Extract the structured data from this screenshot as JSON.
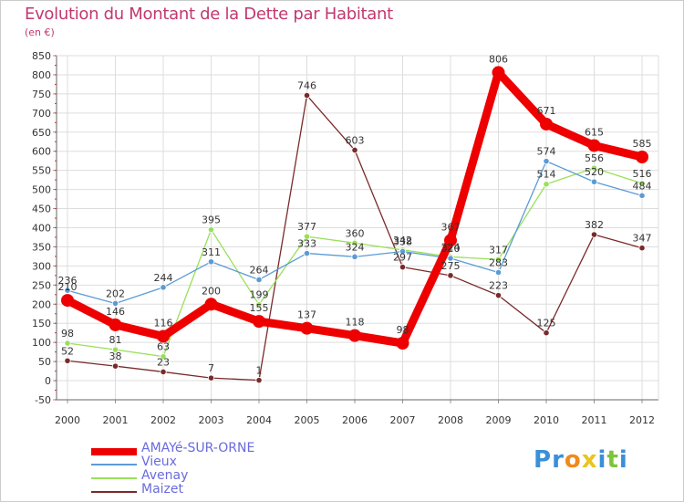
{
  "title": "Evolution du Montant de la Dette par Habitant",
  "unit": "(en €)",
  "logo": {
    "text": "Proxiti",
    "letters": [
      "P",
      "r",
      "o",
      "x",
      "i",
      "t",
      "i"
    ],
    "colors": [
      "#3a8fd8",
      "#3a8fd8",
      "#f08a1c",
      "#e8c51f",
      "#3a8fd8",
      "#7dc43a",
      "#3a8fd8"
    ]
  },
  "chart_data": {
    "type": "line",
    "title": "Evolution du Montant de la Dette par Habitant",
    "ylabel": "(en €)",
    "xlabel": "",
    "x": [
      "2000",
      "2001",
      "2002",
      "2003",
      "2004",
      "2005",
      "2006",
      "2007",
      "2008",
      "2009",
      "2010",
      "2011",
      "2012"
    ],
    "ylim": [
      -50,
      850
    ],
    "yticks": [
      "-50",
      "0",
      "50",
      "100",
      "150",
      "200",
      "250",
      "300",
      "350",
      "400",
      "450",
      "500",
      "550",
      "600",
      "650",
      "700",
      "750",
      "800",
      "850"
    ],
    "grid": true,
    "legend_position": "bottom-left",
    "series": [
      {
        "name": "AMAYé-SUR-ORNE",
        "color": "#ee0000",
        "values": [
          210,
          146,
          116,
          200,
          155,
          137,
          118,
          98,
          367,
          806,
          671,
          615,
          585
        ],
        "labels": [
          "210",
          "146",
          "116",
          "200",
          "155",
          "137",
          "118",
          "98",
          "367",
          "806",
          "671",
          "615",
          "585"
        ]
      },
      {
        "name": "Vieux",
        "color": "#5b9bd5",
        "values": [
          236,
          202,
          244,
          311,
          264,
          333,
          324,
          338,
          320,
          283,
          574,
          520,
          484
        ],
        "labels": [
          "236",
          "202",
          "244",
          "311",
          "264",
          "333",
          "324",
          "338",
          "320",
          "283",
          "574",
          "520",
          "484"
        ]
      },
      {
        "name": "Avenay",
        "color": "#99e05a",
        "values": [
          98,
          81,
          63,
          395,
          199,
          377,
          360,
          342,
          324,
          317,
          514,
          556,
          516
        ],
        "labels": [
          "98",
          "81",
          "63",
          "395",
          "199",
          "377",
          "360",
          "342",
          "324",
          "317",
          "514",
          "556",
          "516"
        ]
      },
      {
        "name": "Maizet",
        "color": "#7a2a2a",
        "values": [
          52,
          38,
          23,
          7,
          1,
          746,
          603,
          297,
          275,
          223,
          125,
          382,
          347
        ],
        "labels": [
          "52",
          "38",
          "23",
          "7",
          "1",
          "746",
          "603",
          "297",
          "275",
          "223",
          "125",
          "382",
          "347"
        ]
      }
    ]
  }
}
